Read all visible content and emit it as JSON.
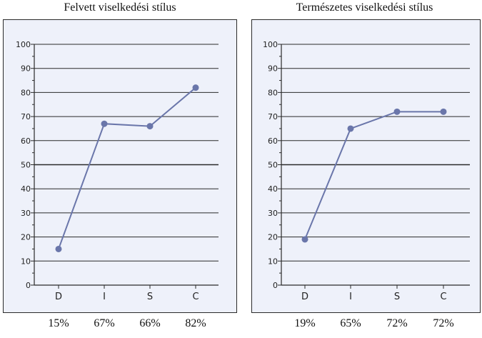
{
  "chart_data": [
    {
      "type": "line",
      "title": "Felvett viselkedési stílus",
      "categories": [
        "D",
        "I",
        "S",
        "C"
      ],
      "values": [
        15,
        67,
        66,
        82
      ],
      "value_labels": [
        "15%",
        "67%",
        "66%",
        "82%"
      ],
      "yticks": [
        "0",
        "10",
        "20",
        "30",
        "40",
        "50",
        "60",
        "70",
        "80",
        "90",
        "100"
      ],
      "xlabel": "",
      "ylabel": "",
      "ylim": [
        0,
        100
      ],
      "grid": true,
      "legend": "none",
      "colors": {
        "plot_background": "#eef1fa",
        "line": "#6a76aa",
        "marker": "#6a76aa",
        "grid": "#2a2a2a",
        "frame": "#2a2a2a"
      }
    },
    {
      "type": "line",
      "title": "Természetes viselkedési stílus",
      "categories": [
        "D",
        "I",
        "S",
        "C"
      ],
      "values": [
        19,
        65,
        72,
        72
      ],
      "value_labels": [
        "19%",
        "65%",
        "72%",
        "72%"
      ],
      "yticks": [
        "0",
        "10",
        "20",
        "30",
        "40",
        "50",
        "60",
        "70",
        "80",
        "90",
        "100"
      ],
      "xlabel": "",
      "ylabel": "",
      "ylim": [
        0,
        100
      ],
      "grid": true,
      "legend": "none",
      "colors": {
        "plot_background": "#eef1fa",
        "line": "#6a76aa",
        "marker": "#6a76aa",
        "grid": "#2a2a2a",
        "frame": "#2a2a2a"
      }
    }
  ]
}
